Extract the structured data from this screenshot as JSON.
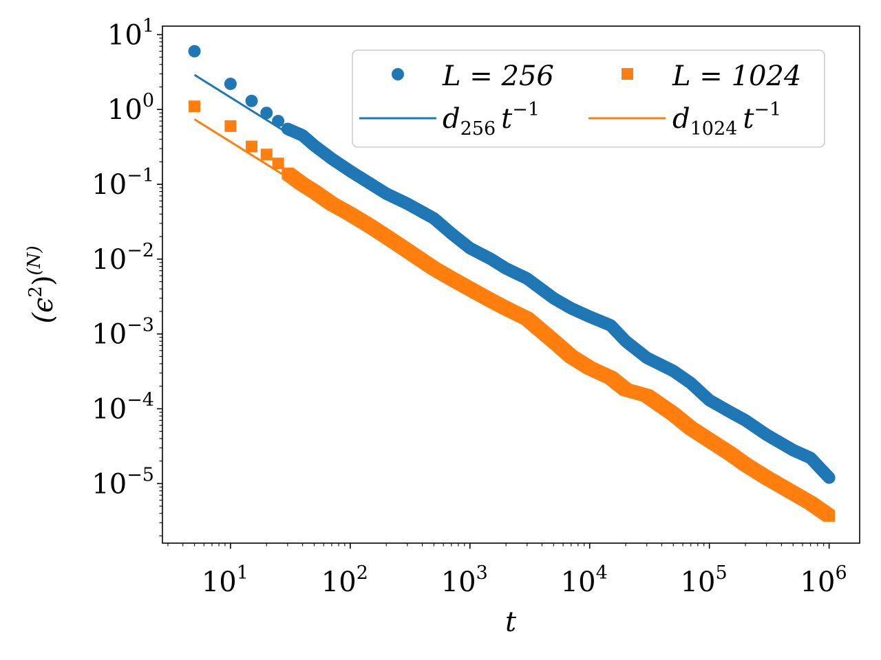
{
  "chart_data": {
    "type": "scatter",
    "scale": {
      "x": "log",
      "y": "log"
    },
    "xlabel": "t",
    "ylabel_base": "(ϵ",
    "ylabel_exp": "2",
    "ylabel_close": ")",
    "ylabel_sup": "(N)",
    "xlim": [
      2.7,
      1800000
    ],
    "ylim": [
      1.6e-06,
      13
    ],
    "x_ticks": [
      {
        "base": "10",
        "exp": "1"
      },
      {
        "base": "10",
        "exp": "2"
      },
      {
        "base": "10",
        "exp": "3"
      },
      {
        "base": "10",
        "exp": "4"
      },
      {
        "base": "10",
        "exp": "5"
      },
      {
        "base": "10",
        "exp": "6"
      }
    ],
    "y_ticks": [
      {
        "base": "10",
        "exp": "−5"
      },
      {
        "base": "10",
        "exp": "−4"
      },
      {
        "base": "10",
        "exp": "−3"
      },
      {
        "base": "10",
        "exp": "−2"
      },
      {
        "base": "10",
        "exp": "−1"
      },
      {
        "base": "10",
        "exp": "0"
      },
      {
        "base": "10",
        "exp": "1"
      }
    ],
    "series": [
      {
        "name": "L = 256",
        "legend_label": "L = 256",
        "marker": "circle",
        "color": "#1f77b4",
        "x": [
          5,
          10,
          15,
          20,
          25,
          30,
          40,
          50,
          70,
          100,
          150,
          200,
          300,
          500,
          700,
          1000,
          1500,
          2000,
          3000,
          5000,
          7000,
          10000,
          15000,
          20000,
          30000,
          50000,
          70000,
          100000,
          150000,
          200000,
          300000,
          500000,
          700000,
          1000000
        ],
        "y": [
          6.0,
          2.2,
          1.3,
          0.9,
          0.7,
          0.55,
          0.45,
          0.33,
          0.22,
          0.15,
          0.1,
          0.075,
          0.055,
          0.035,
          0.022,
          0.014,
          0.01,
          0.0075,
          0.0055,
          0.003,
          0.0022,
          0.0017,
          0.0013,
          0.0008,
          0.00048,
          0.00032,
          0.00022,
          0.00013,
          9e-05,
          7e-05,
          4.5e-05,
          2.8e-05,
          2.2e-05,
          1.2e-05
        ]
      },
      {
        "name": "L = 1024",
        "legend_label": "L = 1024",
        "marker": "square",
        "color": "#ff7f0e",
        "x": [
          5,
          10,
          15,
          20,
          25,
          30,
          40,
          50,
          70,
          100,
          150,
          200,
          300,
          500,
          700,
          1000,
          1500,
          2000,
          3000,
          5000,
          7000,
          10000,
          15000,
          20000,
          30000,
          50000,
          70000,
          100000,
          150000,
          200000,
          300000,
          500000,
          700000,
          1000000
        ],
        "y": [
          1.1,
          0.6,
          0.32,
          0.25,
          0.19,
          0.14,
          0.1,
          0.08,
          0.055,
          0.04,
          0.027,
          0.02,
          0.013,
          0.0075,
          0.0055,
          0.004,
          0.0028,
          0.0022,
          0.0016,
          0.0008,
          0.0005,
          0.00035,
          0.00026,
          0.00018,
          0.00015,
          8.5e-05,
          5.5e-05,
          3.8e-05,
          2.5e-05,
          1.8e-05,
          1.2e-05,
          7.5e-06,
          5.5e-06,
          3.7e-06
        ]
      }
    ],
    "fits": [
      {
        "name": "d_256 t^-1",
        "color": "#1f77b4",
        "d": 14.5,
        "x_range": [
          5,
          30
        ],
        "legend_base": "d",
        "legend_sub": "256",
        "legend_t": "t",
        "legend_exp": "−1"
      },
      {
        "name": "d_1024 t^-1",
        "color": "#ff7f0e",
        "d": 3.7,
        "x_range": [
          5,
          30
        ],
        "legend_base": "d",
        "legend_sub": "1024",
        "legend_t": "t",
        "legend_exp": "−1"
      }
    ],
    "legend": {
      "location": "top-right",
      "columns": 2
    }
  }
}
